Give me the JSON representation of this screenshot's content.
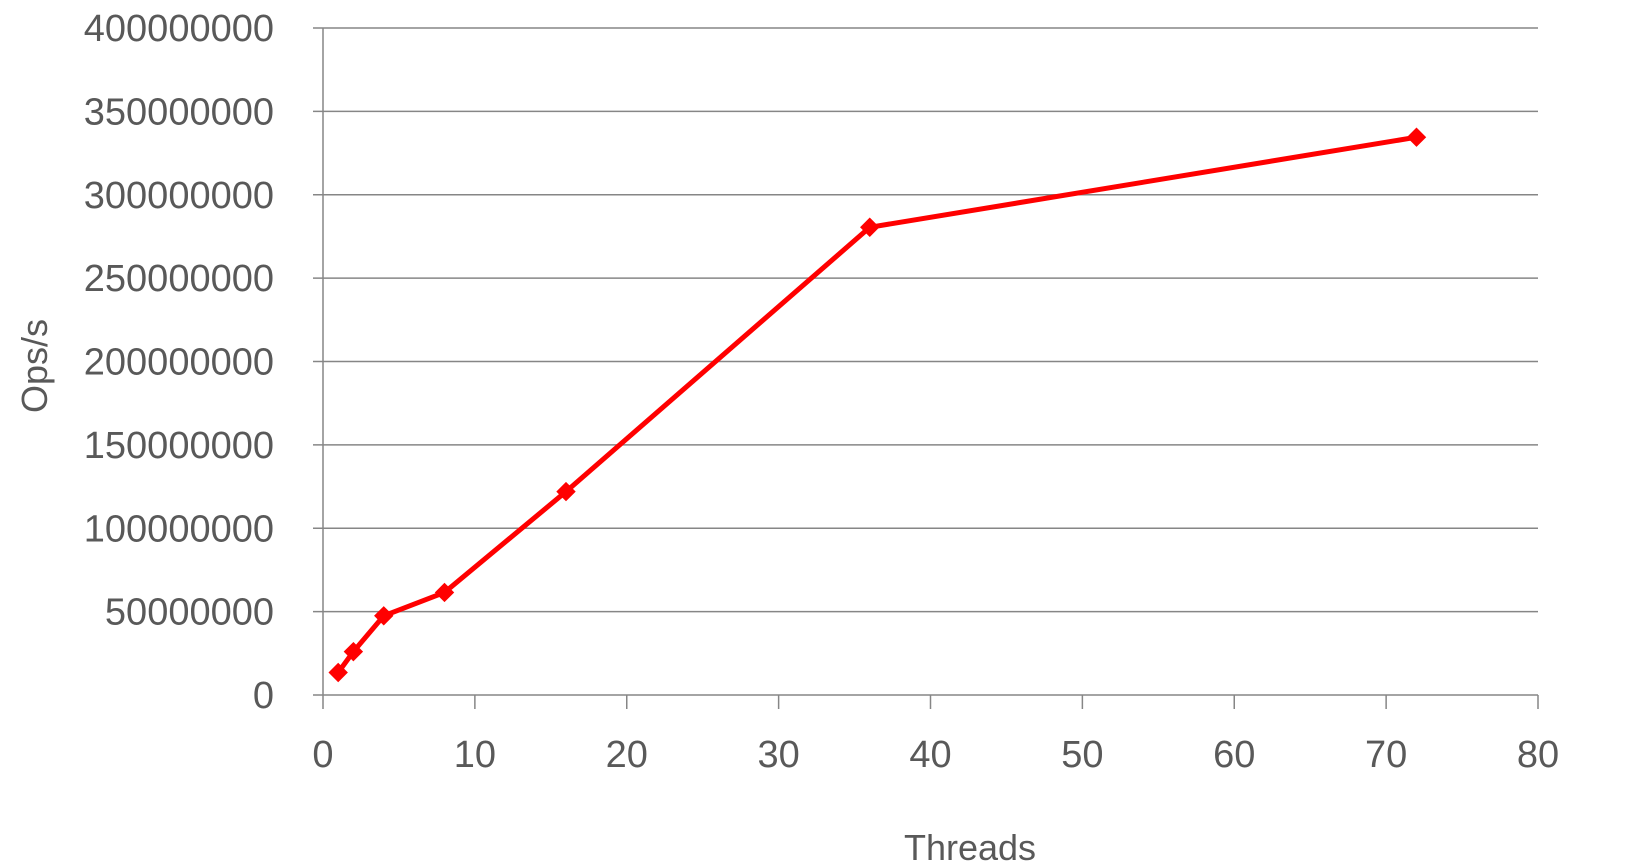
{
  "chart_data": {
    "type": "scatter",
    "title": "",
    "xlabel": "Threads",
    "ylabel": "Ops/s",
    "xlim": [
      0,
      80
    ],
    "ylim": [
      0,
      400000000
    ],
    "x_ticks": [
      0,
      10,
      20,
      30,
      40,
      50,
      60,
      70,
      80
    ],
    "y_ticks": [
      0,
      50000000,
      100000000,
      150000000,
      200000000,
      250000000,
      300000000,
      350000000,
      400000000
    ],
    "grid": "horizontal",
    "legend": "none",
    "series": [
      {
        "color": "#ff0000",
        "marker": "diamond",
        "line": "straight",
        "x": [
          1,
          2,
          4,
          8,
          16,
          36,
          72
        ],
        "y": [
          13500000,
          26000000,
          47500000,
          61500000,
          122000000,
          280500000,
          334500000
        ]
      }
    ]
  }
}
